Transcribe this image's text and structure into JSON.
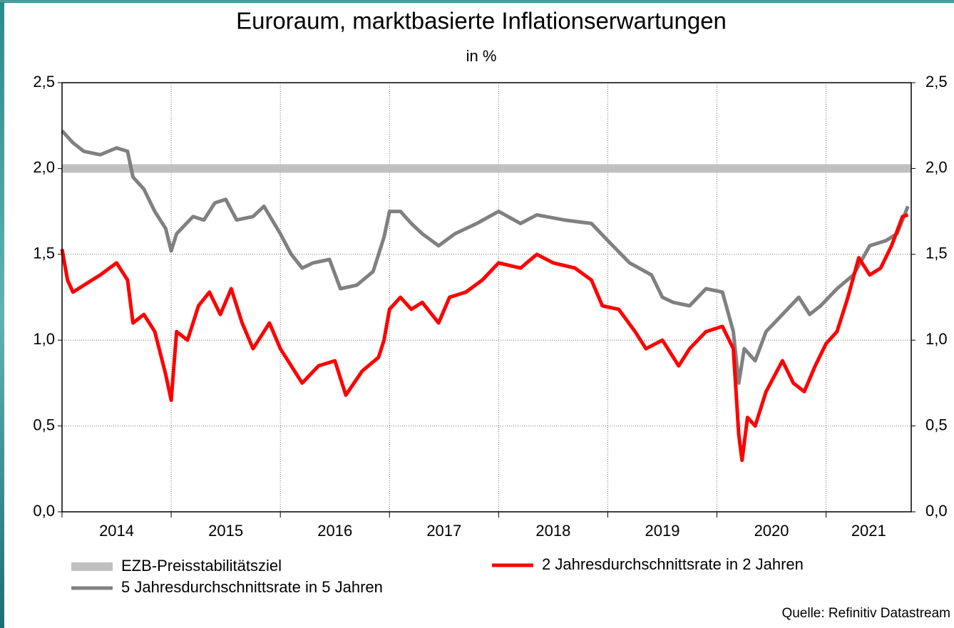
{
  "chart_data": {
    "type": "line",
    "title": "Euroraum, marktbasierte Inflationserwartungen",
    "subtitle": "in %",
    "source": "Quelle: Refinitiv Datastream",
    "xlim": [
      2014,
      2021.78
    ],
    "xticks": [
      {
        "value": 2014,
        "label": "2014"
      },
      {
        "value": 2015,
        "label": "2015"
      },
      {
        "value": 2016,
        "label": "2016"
      },
      {
        "value": 2017,
        "label": "2017"
      },
      {
        "value": 2018,
        "label": "2018"
      },
      {
        "value": 2019,
        "label": "2019"
      },
      {
        "value": 2020,
        "label": "2020"
      },
      {
        "value": 2021,
        "label": "2021"
      }
    ],
    "ylim": [
      0,
      2.5
    ],
    "yticks": [
      {
        "value": 0,
        "label": "0,0"
      },
      {
        "value": 0.5,
        "label": "0,5"
      },
      {
        "value": 1,
        "label": "1,0"
      },
      {
        "value": 1.5,
        "label": "1,5"
      },
      {
        "value": 2,
        "label": "2,0"
      },
      {
        "value": 2.5,
        "label": "2,5"
      }
    ],
    "grid": true,
    "series": [
      {
        "name": "EZB-Preisstabilitätsziel",
        "color": "#c0c0c0",
        "width": 12,
        "x": [
          2014,
          2021.78
        ],
        "values": [
          2.0,
          2.0
        ]
      },
      {
        "name": "5 Jahresdurchschnittsrate in 5 Jahren",
        "color": "#808080",
        "width": 5,
        "x": [
          2014.0,
          2014.1,
          2014.2,
          2014.35,
          2014.5,
          2014.6,
          2014.65,
          2014.75,
          2014.85,
          2014.95,
          2015.0,
          2015.05,
          2015.2,
          2015.3,
          2015.4,
          2015.5,
          2015.6,
          2015.75,
          2015.85,
          2016.0,
          2016.1,
          2016.2,
          2016.3,
          2016.45,
          2016.55,
          2016.7,
          2016.85,
          2016.95,
          2017.0,
          2017.1,
          2017.2,
          2017.3,
          2017.45,
          2017.6,
          2017.8,
          2018.0,
          2018.2,
          2018.35,
          2018.6,
          2018.85,
          2019.0,
          2019.2,
          2019.4,
          2019.5,
          2019.6,
          2019.75,
          2019.9,
          2020.05,
          2020.15,
          2020.2,
          2020.25,
          2020.35,
          2020.45,
          2020.6,
          2020.75,
          2020.85,
          2020.95,
          2021.1,
          2021.25,
          2021.4,
          2021.55,
          2021.65,
          2021.75
        ],
        "values": [
          2.22,
          2.15,
          2.1,
          2.08,
          2.12,
          2.1,
          1.95,
          1.88,
          1.75,
          1.65,
          1.52,
          1.62,
          1.72,
          1.7,
          1.8,
          1.82,
          1.7,
          1.72,
          1.78,
          1.62,
          1.5,
          1.42,
          1.45,
          1.47,
          1.3,
          1.32,
          1.4,
          1.6,
          1.75,
          1.75,
          1.68,
          1.62,
          1.55,
          1.62,
          1.68,
          1.75,
          1.68,
          1.73,
          1.7,
          1.68,
          1.58,
          1.45,
          1.38,
          1.25,
          1.22,
          1.2,
          1.3,
          1.28,
          1.05,
          0.75,
          0.95,
          0.88,
          1.05,
          1.15,
          1.25,
          1.15,
          1.2,
          1.3,
          1.38,
          1.55,
          1.58,
          1.62,
          1.78
        ]
      },
      {
        "name": "2 Jahresdurchschnittsrate in 2 Jahren",
        "color": "#ff0000",
        "width": 5,
        "x": [
          2014.0,
          2014.05,
          2014.1,
          2014.2,
          2014.35,
          2014.5,
          2014.6,
          2014.65,
          2014.75,
          2014.85,
          2014.95,
          2015.0,
          2015.05,
          2015.15,
          2015.25,
          2015.35,
          2015.45,
          2015.55,
          2015.65,
          2015.75,
          2015.9,
          2016.0,
          2016.1,
          2016.2,
          2016.35,
          2016.5,
          2016.6,
          2016.75,
          2016.9,
          2016.95,
          2017.0,
          2017.1,
          2017.2,
          2017.3,
          2017.45,
          2017.55,
          2017.7,
          2017.85,
          2018.0,
          2018.2,
          2018.35,
          2018.5,
          2018.7,
          2018.85,
          2018.95,
          2019.1,
          2019.25,
          2019.35,
          2019.5,
          2019.65,
          2019.75,
          2019.9,
          2020.05,
          2020.15,
          2020.2,
          2020.23,
          2020.28,
          2020.35,
          2020.45,
          2020.6,
          2020.7,
          2020.8,
          2020.9,
          2021.0,
          2021.1,
          2021.2,
          2021.3,
          2021.4,
          2021.5,
          2021.6,
          2021.7,
          2021.75
        ],
        "values": [
          1.53,
          1.35,
          1.28,
          1.32,
          1.38,
          1.45,
          1.35,
          1.1,
          1.15,
          1.05,
          0.8,
          0.65,
          1.05,
          1.0,
          1.2,
          1.28,
          1.15,
          1.3,
          1.1,
          0.95,
          1.1,
          0.95,
          0.85,
          0.75,
          0.85,
          0.88,
          0.68,
          0.82,
          0.9,
          1.0,
          1.18,
          1.25,
          1.18,
          1.22,
          1.1,
          1.25,
          1.28,
          1.35,
          1.45,
          1.42,
          1.5,
          1.45,
          1.42,
          1.35,
          1.2,
          1.18,
          1.05,
          0.95,
          1.0,
          0.85,
          0.95,
          1.05,
          1.08,
          0.95,
          0.45,
          0.3,
          0.55,
          0.5,
          0.7,
          0.88,
          0.75,
          0.7,
          0.85,
          0.98,
          1.05,
          1.25,
          1.48,
          1.38,
          1.42,
          1.55,
          1.72,
          1.73
        ]
      }
    ]
  }
}
